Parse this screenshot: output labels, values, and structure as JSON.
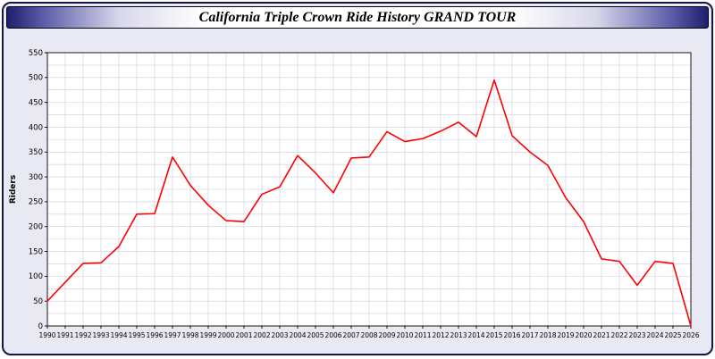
{
  "title": "California Triple Crown Ride History GRAND TOUR",
  "colors": {
    "line": "#ff0000",
    "grid": "#ccccdc",
    "plot_background": "#ffffff",
    "page_background": "#e9e9f3",
    "frame_border": "#15154a",
    "titlebar_edge": "#1e1e6e",
    "axis": "#000000"
  },
  "chart_data": {
    "type": "line",
    "title": "California Triple Crown Ride History GRAND TOUR",
    "xlabel": "",
    "ylabel": "Riders",
    "ylim": [
      0,
      550
    ],
    "y_tick_step": 50,
    "y_grid_step": 25,
    "grid": true,
    "legend": "none",
    "x": [
      1990,
      1991,
      1992,
      1993,
      1994,
      1995,
      1996,
      1997,
      1998,
      1999,
      2000,
      2001,
      2002,
      2003,
      2004,
      2005,
      2006,
      2007,
      2008,
      2009,
      2010,
      2011,
      2012,
      2013,
      2014,
      2015,
      2016,
      2017,
      2018,
      2019,
      2020,
      2021,
      2022,
      2023,
      2024,
      2025,
      2026
    ],
    "series": [
      {
        "name": "Riders",
        "color": "#ff0000",
        "values": [
          50,
          88,
          126,
          127,
          160,
          225,
          226,
          340,
          283,
          243,
          212,
          210,
          265,
          280,
          343,
          308,
          268,
          338,
          340,
          391,
          371,
          377,
          392,
          410,
          381,
          495,
          383,
          350,
          323,
          258,
          210,
          135,
          130,
          82,
          130,
          126,
          0
        ]
      }
    ]
  }
}
